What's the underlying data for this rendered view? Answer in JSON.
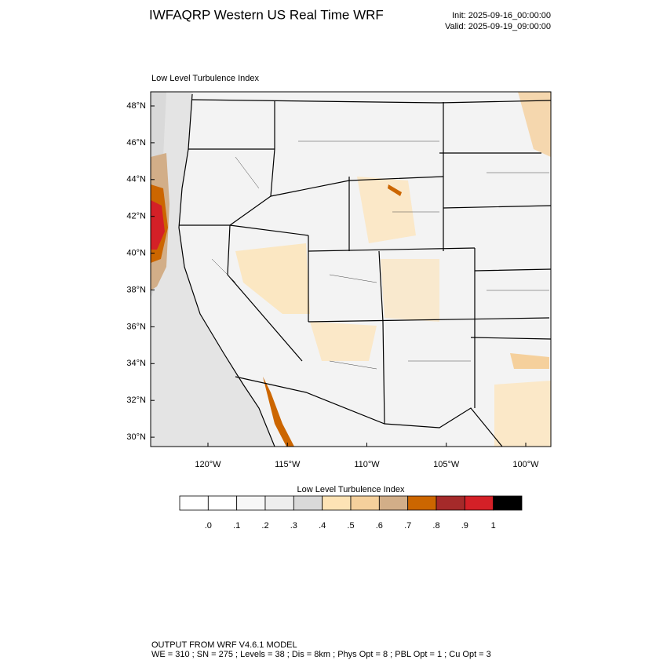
{
  "header": {
    "title": "IWFAQRP Western US Real Time WRF",
    "init": "Init: 2025-09-16_00:00:00",
    "valid": "Valid: 2025-09-19_09:00:00"
  },
  "map": {
    "panel_label": "Low Level Turbulence Index",
    "lat_ticks": [
      {
        "value": 48,
        "label": "48°N"
      },
      {
        "value": 46,
        "label": "46°N"
      },
      {
        "value": 44,
        "label": "44°N"
      },
      {
        "value": 42,
        "label": "42°N"
      },
      {
        "value": 40,
        "label": "40°N"
      },
      {
        "value": 38,
        "label": "38°N"
      },
      {
        "value": 36,
        "label": "36°N"
      },
      {
        "value": 34,
        "label": "34°N"
      },
      {
        "value": 32,
        "label": "32°N"
      },
      {
        "value": 30,
        "label": "30°N"
      }
    ],
    "lon_ticks": [
      {
        "value": -120,
        "label": "120°W"
      },
      {
        "value": -115,
        "label": "115°W"
      },
      {
        "value": -110,
        "label": "110°W"
      },
      {
        "value": -105,
        "label": "105°W"
      },
      {
        "value": -100,
        "label": "100°W"
      }
    ]
  },
  "colorbar": {
    "title": "Low Level Turbulence Index",
    "colors": [
      "#ffffff",
      "#f7f7f7",
      "#eeeeee",
      "#d9d9d9",
      "#fde3b5",
      "#f5d09c",
      "#d2ae88",
      "#cc6600",
      "#a52a2a",
      "#d42027",
      "#000000"
    ],
    "levels": [
      {
        "value": 0,
        "label": ".0"
      },
      {
        "value": 0.1,
        "label": ".1"
      },
      {
        "value": 0.2,
        "label": ".2"
      },
      {
        "value": 0.3,
        "label": ".3"
      },
      {
        "value": 0.4,
        "label": ".4"
      },
      {
        "value": 0.5,
        "label": ".5"
      },
      {
        "value": 0.6,
        "label": ".6"
      },
      {
        "value": 0.7,
        "label": ".7"
      },
      {
        "value": 0.8,
        "label": ".8"
      },
      {
        "value": 0.9,
        "label": ".9"
      },
      1
    ]
  },
  "footer": {
    "line1": "OUTPUT FROM WRF V4.6.1 MODEL",
    "line2": "WE = 310 ; SN = 275 ; Levels = 38 ; Dis = 8km ; Phys Opt = 8 ; PBL Opt = 1 ; Cu Opt = 3"
  }
}
